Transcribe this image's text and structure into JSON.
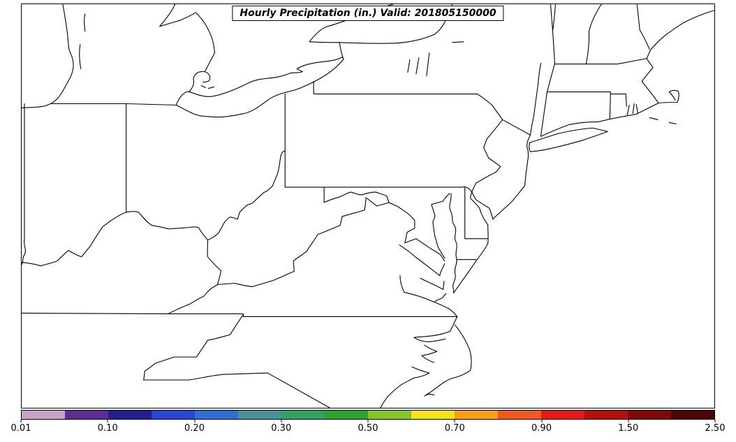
{
  "title": "Hourly Precipitation (in.) Valid: 201805150000",
  "colorbar": {
    "units": "in.",
    "tick_labels": [
      "0.01",
      "0.10",
      "0.20",
      "0.30",
      "0.50",
      "0.70",
      "0.90",
      "1.50",
      "2.50"
    ],
    "tick_positions_pct": [
      0,
      12.5,
      25,
      37.5,
      50,
      62.5,
      75,
      87.5,
      100
    ],
    "scale_boundaries_inches": [
      0.01,
      0.05,
      0.1,
      0.15,
      0.2,
      0.25,
      0.3,
      0.4,
      0.5,
      0.6,
      0.7,
      0.8,
      0.9,
      1.0,
      1.5,
      2.0,
      2.5
    ],
    "segment_colors": [
      "#c8a4c8",
      "#5c2e91",
      "#241f8f",
      "#2b46d4",
      "#2e6fcf",
      "#4c9099",
      "#33a066",
      "#2ea12e",
      "#86c32f",
      "#f2e31c",
      "#f6a019",
      "#ee5a1f",
      "#e01b1b",
      "#b31111",
      "#800a0a",
      "#4d0505"
    ]
  },
  "map": {
    "region_label": "Northeastern United States state boundaries and coastlines",
    "line_color": "#000000",
    "background_color": "#ffffff"
  }
}
